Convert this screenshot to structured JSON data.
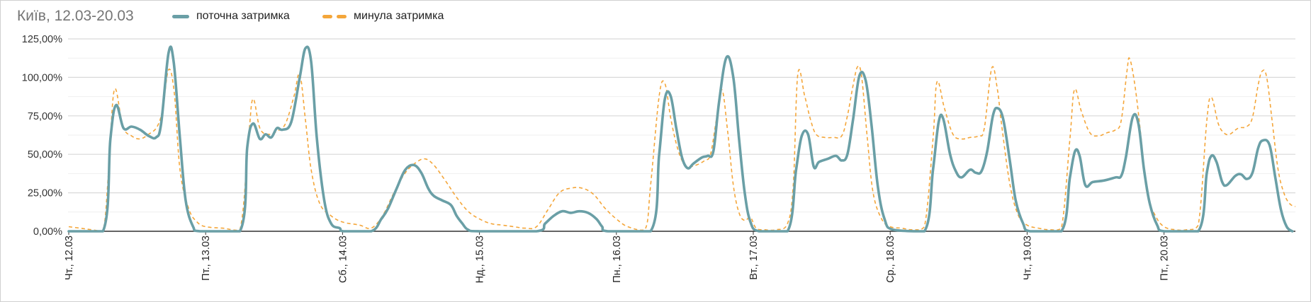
{
  "colors": {
    "current": "#6a9fa6",
    "previous": "#f4a63a",
    "grid": "#d9d9d9",
    "axis": "#333333"
  },
  "legend": {
    "current_label": "поточна затримка",
    "previous_label": "минула затримка"
  },
  "chart_data": {
    "type": "line",
    "title": "Київ, 12.03-20.03",
    "xlabel": "",
    "ylabel": "",
    "ylim": [
      0,
      125
    ],
    "yticks": [
      0,
      25,
      50,
      75,
      100,
      125
    ],
    "ytick_labels": [
      "0,00%",
      "25,00%",
      "50,00%",
      "75,00%",
      "100,00%",
      "125,00%"
    ],
    "grid": true,
    "legend_position": "top-left",
    "xlim": [
      0,
      215
    ],
    "x_unit": "hours since first tick (12.03)",
    "xtick_positions": [
      0,
      24,
      48,
      72,
      96,
      120,
      144,
      168,
      192
    ],
    "xtick_labels": [
      "Чт., 12.03",
      "Пт., 13.03",
      "Сб., 14.03",
      "Нд., 15.03",
      "Пн., 16.03",
      "Вт., 17.03",
      "Ср., 18.03",
      "Чт., 19.03",
      "Пт., 20.03"
    ],
    "series": [
      {
        "name": "поточна затримка",
        "style": "solid",
        "points": [
          [
            0,
            0
          ],
          [
            6,
            0
          ],
          [
            7.3,
            60
          ],
          [
            8.3,
            82
          ],
          [
            9.6,
            67
          ],
          [
            11,
            68
          ],
          [
            12.5,
            66
          ],
          [
            14,
            62
          ],
          [
            15.3,
            61
          ],
          [
            16.2,
            70
          ],
          [
            17.5,
            116
          ],
          [
            18.4,
            110
          ],
          [
            19.5,
            60
          ],
          [
            20.5,
            20
          ],
          [
            21.8,
            3
          ],
          [
            23,
            0
          ],
          [
            30,
            0
          ],
          [
            31.3,
            55
          ],
          [
            32.3,
            70
          ],
          [
            33.5,
            60
          ],
          [
            34.5,
            63
          ],
          [
            35.5,
            61
          ],
          [
            36.5,
            67
          ],
          [
            37.5,
            66
          ],
          [
            39,
            71
          ],
          [
            40.5,
            100
          ],
          [
            41.5,
            119
          ],
          [
            42.5,
            110
          ],
          [
            43.5,
            60
          ],
          [
            44.8,
            20
          ],
          [
            46,
            5
          ],
          [
            47.5,
            2
          ],
          [
            48.2,
            0
          ],
          [
            53,
            0
          ],
          [
            54.8,
            8
          ],
          [
            56,
            15
          ],
          [
            57.5,
            28
          ],
          [
            59,
            40
          ],
          [
            60.5,
            43
          ],
          [
            61.8,
            38
          ],
          [
            63,
            28
          ],
          [
            64,
            23
          ],
          [
            65.5,
            20
          ],
          [
            67,
            17
          ],
          [
            68,
            10
          ],
          [
            69,
            5
          ],
          [
            70,
            1
          ],
          [
            72,
            0
          ],
          [
            82,
            0
          ],
          [
            83.5,
            5
          ],
          [
            85,
            10
          ],
          [
            86.5,
            13
          ],
          [
            88,
            12
          ],
          [
            89.5,
            13
          ],
          [
            91,
            12
          ],
          [
            92.5,
            8
          ],
          [
            93.5,
            3
          ],
          [
            94.5,
            0
          ],
          [
            102,
            0
          ],
          [
            103.5,
            50
          ],
          [
            104.5,
            86
          ],
          [
            105.5,
            88
          ],
          [
            106.5,
            67
          ],
          [
            107.5,
            48
          ],
          [
            108.5,
            41
          ],
          [
            109.5,
            44
          ],
          [
            111,
            48
          ],
          [
            112,
            49
          ],
          [
            113,
            52
          ],
          [
            114,
            84
          ],
          [
            115.3,
            113
          ],
          [
            116.5,
            100
          ],
          [
            117.5,
            60
          ],
          [
            118.5,
            25
          ],
          [
            119.5,
            6
          ],
          [
            121,
            0
          ],
          [
            126,
            0
          ],
          [
            127.5,
            40
          ],
          [
            128.5,
            62
          ],
          [
            129.6,
            63
          ],
          [
            130.6,
            42
          ],
          [
            131.5,
            45
          ],
          [
            133,
            47
          ],
          [
            134.5,
            49
          ],
          [
            135.5,
            46
          ],
          [
            136.5,
            50
          ],
          [
            137.5,
            73
          ],
          [
            138.6,
            101
          ],
          [
            139.7,
            98
          ],
          [
            140.7,
            70
          ],
          [
            141.8,
            30
          ],
          [
            143,
            8
          ],
          [
            144.5,
            1
          ],
          [
            150,
            0
          ],
          [
            151.5,
            40
          ],
          [
            152.5,
            71
          ],
          [
            153.3,
            73
          ],
          [
            154.5,
            50
          ],
          [
            155.5,
            39
          ],
          [
            156.5,
            35
          ],
          [
            158,
            40
          ],
          [
            159,
            38
          ],
          [
            160,
            39
          ],
          [
            161,
            52
          ],
          [
            162,
            75
          ],
          [
            162.8,
            80
          ],
          [
            163.8,
            73
          ],
          [
            165,
            45
          ],
          [
            166,
            20
          ],
          [
            167.3,
            5
          ],
          [
            168.5,
            0
          ],
          [
            174,
            0
          ],
          [
            175.5,
            35
          ],
          [
            176.4,
            52
          ],
          [
            177.2,
            49
          ],
          [
            178.2,
            30
          ],
          [
            179.5,
            32
          ],
          [
            181.5,
            33
          ],
          [
            183.5,
            35
          ],
          [
            184.5,
            36
          ],
          [
            185.3,
            48
          ],
          [
            186.5,
            74
          ],
          [
            187.5,
            70
          ],
          [
            188.5,
            40
          ],
          [
            189.5,
            18
          ],
          [
            190.8,
            4
          ],
          [
            192,
            0
          ],
          [
            198,
            0
          ],
          [
            199.5,
            38
          ],
          [
            200.3,
            49
          ],
          [
            201.2,
            45
          ],
          [
            202.2,
            32
          ],
          [
            203,
            30
          ],
          [
            204.5,
            36
          ],
          [
            205.5,
            37
          ],
          [
            206.5,
            34
          ],
          [
            207.5,
            38
          ],
          [
            208.5,
            54
          ],
          [
            209.3,
            59
          ],
          [
            210.5,
            56
          ],
          [
            211.5,
            35
          ],
          [
            212.5,
            14
          ],
          [
            213.5,
            3
          ],
          [
            214.5,
            0
          ]
        ]
      },
      {
        "name": "минула затримка",
        "style": "dashed",
        "points": [
          [
            0,
            3
          ],
          [
            2,
            2
          ],
          [
            4,
            1
          ],
          [
            6,
            0
          ],
          [
            7,
            40
          ],
          [
            8,
            92
          ],
          [
            9.5,
            68
          ],
          [
            11,
            62
          ],
          [
            12.5,
            60
          ],
          [
            14,
            63
          ],
          [
            15.5,
            68
          ],
          [
            16.5,
            80
          ],
          [
            17.5,
            105
          ],
          [
            18.5,
            90
          ],
          [
            19.5,
            40
          ],
          [
            21,
            15
          ],
          [
            22.5,
            6
          ],
          [
            24,
            3
          ],
          [
            27,
            2
          ],
          [
            30,
            1
          ],
          [
            31.5,
            60
          ],
          [
            32.3,
            86
          ],
          [
            33.5,
            67
          ],
          [
            35,
            63
          ],
          [
            36.5,
            65
          ],
          [
            38,
            70
          ],
          [
            39.5,
            88
          ],
          [
            40.5,
            102
          ],
          [
            41.5,
            72
          ],
          [
            42.5,
            40
          ],
          [
            44,
            18
          ],
          [
            46,
            10
          ],
          [
            48,
            6
          ],
          [
            51,
            4
          ],
          [
            53,
            2
          ],
          [
            55,
            10
          ],
          [
            57,
            25
          ],
          [
            59,
            38
          ],
          [
            61,
            45
          ],
          [
            62.5,
            47
          ],
          [
            64,
            43
          ],
          [
            66,
            33
          ],
          [
            68,
            22
          ],
          [
            70,
            13
          ],
          [
            72,
            8
          ],
          [
            74,
            5
          ],
          [
            76,
            4
          ],
          [
            78,
            3
          ],
          [
            80,
            2
          ],
          [
            82,
            3
          ],
          [
            84,
            14
          ],
          [
            86,
            25
          ],
          [
            88,
            28
          ],
          [
            90,
            28
          ],
          [
            92,
            24
          ],
          [
            94,
            15
          ],
          [
            96,
            8
          ],
          [
            98,
            3
          ],
          [
            101,
            1
          ],
          [
            102,
            30
          ],
          [
            103.5,
            88
          ],
          [
            104.5,
            96
          ],
          [
            105.5,
            74
          ],
          [
            106.5,
            57
          ],
          [
            107.5,
            46
          ],
          [
            108.5,
            42
          ],
          [
            110,
            43
          ],
          [
            111.5,
            46
          ],
          [
            112.5,
            50
          ],
          [
            113.5,
            72
          ],
          [
            114.5,
            92
          ],
          [
            115.5,
            65
          ],
          [
            116.5,
            30
          ],
          [
            117.5,
            12
          ],
          [
            118.5,
            7
          ],
          [
            119.5,
            9
          ],
          [
            120.5,
            2
          ],
          [
            122,
            1
          ],
          [
            124,
            1
          ],
          [
            126,
            5
          ],
          [
            127,
            30
          ],
          [
            127.8,
            102
          ],
          [
            129,
            88
          ],
          [
            130,
            73
          ],
          [
            131,
            63
          ],
          [
            132.5,
            61
          ],
          [
            134,
            61
          ],
          [
            135.5,
            62
          ],
          [
            136.5,
            75
          ],
          [
            137.5,
            95
          ],
          [
            138.3,
            107
          ],
          [
            139,
            100
          ],
          [
            140,
            60
          ],
          [
            141,
            25
          ],
          [
            142.5,
            8
          ],
          [
            144,
            3
          ],
          [
            146,
            2
          ],
          [
            148,
            1
          ],
          [
            150,
            3
          ],
          [
            151.5,
            60
          ],
          [
            152.2,
            97
          ],
          [
            153.5,
            80
          ],
          [
            155,
            63
          ],
          [
            156.5,
            60
          ],
          [
            158,
            61
          ],
          [
            159.5,
            62
          ],
          [
            160.5,
            67
          ],
          [
            161.8,
            106
          ],
          [
            162.8,
            92
          ],
          [
            163.5,
            70
          ],
          [
            165,
            30
          ],
          [
            166.5,
            10
          ],
          [
            168,
            4
          ],
          [
            170,
            2
          ],
          [
            172,
            1
          ],
          [
            174,
            2
          ],
          [
            175.5,
            60
          ],
          [
            176.3,
            92
          ],
          [
            177.5,
            78
          ],
          [
            179,
            64
          ],
          [
            180.5,
            62
          ],
          [
            182,
            64
          ],
          [
            183.5,
            66
          ],
          [
            184.5,
            72
          ],
          [
            185.5,
            104
          ],
          [
            186,
            112
          ],
          [
            187,
            92
          ],
          [
            188,
            60
          ],
          [
            189,
            25
          ],
          [
            190.5,
            10
          ],
          [
            192,
            3
          ],
          [
            194,
            1
          ],
          [
            196,
            1
          ],
          [
            198,
            4
          ],
          [
            199.5,
            72
          ],
          [
            200.3,
            87
          ],
          [
            201.5,
            70
          ],
          [
            202.5,
            64
          ],
          [
            203.5,
            63
          ],
          [
            205,
            67
          ],
          [
            206.5,
            68
          ],
          [
            207.5,
            74
          ],
          [
            208.5,
            95
          ],
          [
            209.2,
            104
          ],
          [
            210,
            100
          ],
          [
            211,
            70
          ],
          [
            212,
            40
          ],
          [
            213,
            25
          ],
          [
            214,
            18
          ],
          [
            215,
            16
          ]
        ]
      }
    ]
  }
}
